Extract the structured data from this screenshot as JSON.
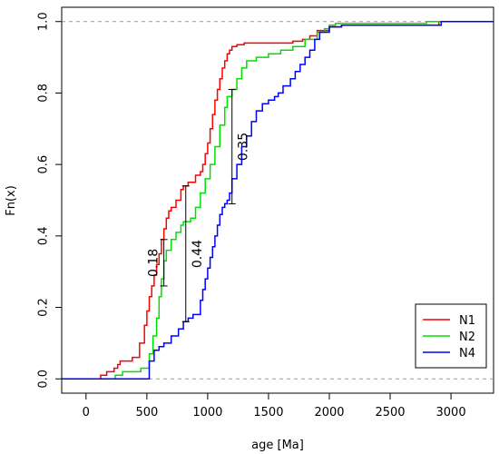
{
  "chart_data": {
    "type": "line",
    "title": "",
    "xlabel": "age [Ma]",
    "ylabel": "Fn(x)",
    "xlim": [
      -200,
      3350
    ],
    "ylim": [
      -0.04,
      1.04
    ],
    "xticks": [
      0,
      500,
      1000,
      1500,
      2000,
      2500,
      3000
    ],
    "yticks": [
      0.0,
      0.2,
      0.4,
      0.6,
      0.8,
      1.0
    ],
    "xtick_labels": [
      "0",
      "500",
      "1000",
      "1500",
      "2000",
      "2500",
      "3000"
    ],
    "ytick_labels": [
      "0.0",
      "0.2",
      "0.4",
      "0.6",
      "0.8",
      "1.0"
    ],
    "reference_lines": [
      0,
      1
    ],
    "grid": false,
    "legend_position": "bottom-right",
    "series": [
      {
        "name": "N1",
        "color": "#ff0000",
        "x": [
          -200,
          120,
          170,
          230,
          260,
          280,
          380,
          440,
          480,
          500,
          520,
          540,
          560,
          580,
          600,
          620,
          640,
          660,
          680,
          700,
          740,
          780,
          800,
          840,
          900,
          940,
          960,
          980,
          1000,
          1020,
          1040,
          1060,
          1080,
          1100,
          1120,
          1140,
          1160,
          1180,
          1200,
          1240,
          1300,
          1400,
          1500,
          1600,
          1700,
          1780,
          1840,
          1900,
          2000,
          2100,
          2400,
          2800,
          2900,
          3000,
          3350
        ],
        "y": [
          0.0,
          0.01,
          0.02,
          0.03,
          0.04,
          0.05,
          0.06,
          0.1,
          0.15,
          0.19,
          0.23,
          0.26,
          0.29,
          0.32,
          0.35,
          0.39,
          0.42,
          0.45,
          0.47,
          0.48,
          0.5,
          0.53,
          0.54,
          0.55,
          0.57,
          0.58,
          0.6,
          0.63,
          0.66,
          0.7,
          0.74,
          0.78,
          0.81,
          0.84,
          0.87,
          0.89,
          0.91,
          0.92,
          0.93,
          0.935,
          0.94,
          0.94,
          0.94,
          0.94,
          0.945,
          0.95,
          0.96,
          0.975,
          0.985,
          0.99,
          0.99,
          0.99,
          1.0,
          1.0,
          1.0
        ]
      },
      {
        "name": "N2",
        "color": "#00e000",
        "x": [
          -200,
          240,
          300,
          450,
          520,
          550,
          580,
          600,
          620,
          640,
          660,
          700,
          740,
          780,
          800,
          860,
          900,
          940,
          980,
          1020,
          1060,
          1100,
          1140,
          1160,
          1200,
          1240,
          1280,
          1320,
          1400,
          1500,
          1600,
          1700,
          1800,
          1900,
          1960,
          2000,
          2050,
          2800,
          3350
        ],
        "y": [
          0.0,
          0.01,
          0.02,
          0.03,
          0.07,
          0.12,
          0.17,
          0.23,
          0.28,
          0.33,
          0.36,
          0.39,
          0.41,
          0.43,
          0.44,
          0.45,
          0.48,
          0.52,
          0.56,
          0.6,
          0.65,
          0.71,
          0.76,
          0.79,
          0.81,
          0.84,
          0.87,
          0.89,
          0.9,
          0.91,
          0.92,
          0.93,
          0.95,
          0.97,
          0.98,
          0.99,
          0.995,
          1.0,
          1.0
        ]
      },
      {
        "name": "N4",
        "color": "#0000ff",
        "x": [
          -200,
          520,
          560,
          600,
          640,
          700,
          760,
          800,
          840,
          880,
          940,
          960,
          980,
          1000,
          1020,
          1040,
          1060,
          1080,
          1100,
          1120,
          1140,
          1160,
          1180,
          1200,
          1240,
          1280,
          1320,
          1360,
          1400,
          1450,
          1500,
          1550,
          1580,
          1620,
          1680,
          1720,
          1760,
          1800,
          1840,
          1880,
          1920,
          2000,
          2100,
          2200,
          2600,
          2920,
          3350
        ],
        "y": [
          0.0,
          0.05,
          0.08,
          0.09,
          0.1,
          0.12,
          0.14,
          0.16,
          0.17,
          0.18,
          0.22,
          0.25,
          0.28,
          0.31,
          0.34,
          0.37,
          0.4,
          0.43,
          0.46,
          0.48,
          0.49,
          0.5,
          0.52,
          0.56,
          0.6,
          0.65,
          0.68,
          0.72,
          0.75,
          0.77,
          0.78,
          0.79,
          0.8,
          0.82,
          0.84,
          0.86,
          0.88,
          0.9,
          0.92,
          0.95,
          0.97,
          0.985,
          0.99,
          0.99,
          0.99,
          1.0,
          1.0
        ]
      }
    ],
    "annotations": [
      {
        "label": "0.18",
        "x": 640,
        "y_low": 0.26,
        "y_high": 0.39
      },
      {
        "label": "0.44",
        "x": 820,
        "y_low": 0.16,
        "y_high": 0.54
      },
      {
        "label": "0.35",
        "x": 1200,
        "y_low": 0.49,
        "y_high": 0.81
      }
    ]
  }
}
